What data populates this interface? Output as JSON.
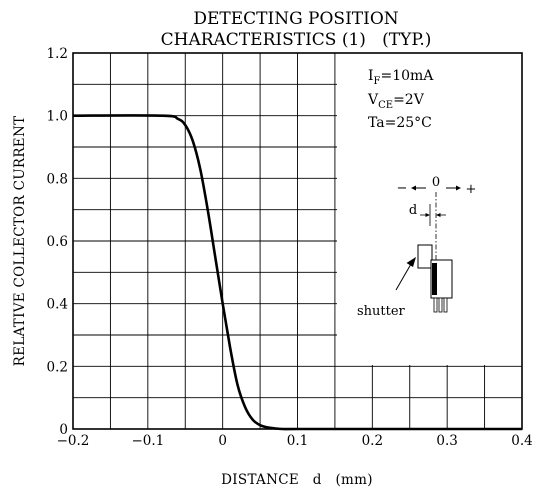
{
  "chart_data": {
    "type": "line",
    "title_line1": "DETECTING POSITION",
    "title_line2": "CHARACTERISTICS (1)   (TYP.)",
    "xlabel": "DISTANCE   d   (mm)",
    "ylabel": "RELATIVE COLLECTOR CURRENT",
    "xlim": [
      -0.2,
      0.4
    ],
    "ylim": [
      0,
      1.2
    ],
    "x_ticks": [
      "−0.2",
      "−0.1",
      "0",
      "0.1",
      "0.2",
      "0.3",
      "0.4"
    ],
    "y_ticks": [
      "0",
      "0.2",
      "0.4",
      "0.6",
      "0.8",
      "1.0",
      "1.2"
    ],
    "grid": true,
    "series": [
      {
        "x": [
          -0.2,
          -0.08,
          -0.06,
          -0.05,
          -0.04,
          -0.03,
          -0.02,
          -0.01,
          0.0,
          0.01,
          0.02,
          0.03,
          0.04,
          0.05,
          0.06,
          0.07,
          0.08,
          0.1,
          0.2,
          0.3,
          0.4
        ],
        "y": [
          1.0,
          1.0,
          0.99,
          0.97,
          0.92,
          0.83,
          0.7,
          0.55,
          0.4,
          0.26,
          0.14,
          0.07,
          0.03,
          0.012,
          0.005,
          0.002,
          0.0,
          0.0,
          0.0,
          0.0,
          0.0
        ]
      }
    ],
    "conditions": [
      {
        "main": "I",
        "sub": "F",
        "rest": "=10mA"
      },
      {
        "main": "V",
        "sub": "CE",
        "rest": "=2V"
      },
      {
        "main": "Ta=25°C",
        "sub": "",
        "rest": ""
      }
    ],
    "diagram": {
      "minus": "−",
      "zero": "0",
      "plus": "+",
      "d_label": "d",
      "shutter_label": "shutter"
    }
  }
}
